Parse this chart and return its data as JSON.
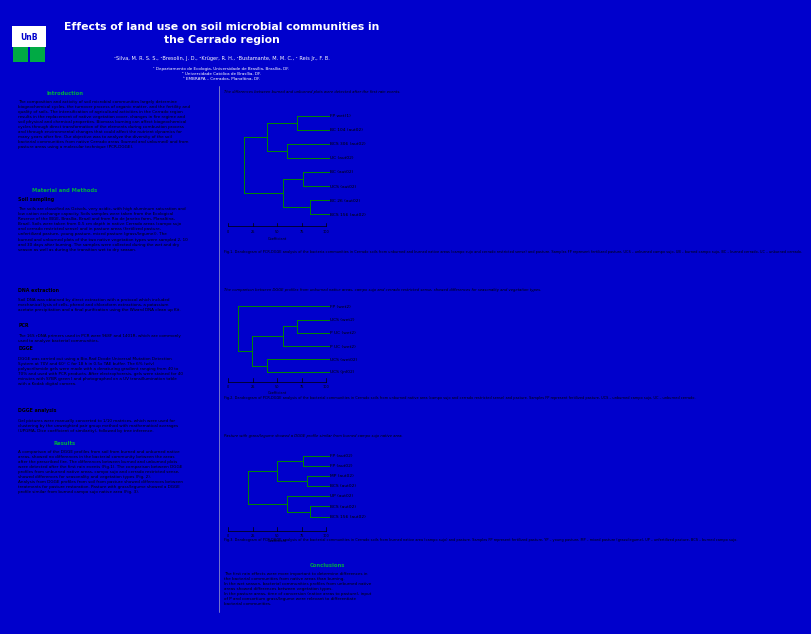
{
  "title": "Effects of land use on soil microbial communities in\nthe Cerrado region",
  "authors": "¹Silva, M. R. S. S., ¹Bresolin, J. D., ²Krüger, R. H., ¹Bustamante, M. M. C., ¹ Reis Jr., F. B.",
  "affiliations": "¹ Departamento de Ecologia, Universidade de Brasília, Brasília, DF.\n² Universidade Católica de Brasília, DF.\n³ EMBRAPA – Cerrados, Planaltina, DF.",
  "section_color": "#00aa44",
  "header_bg": "#0000cc",
  "header_text": "#ffffff",
  "body_bg": "#ffffff",
  "border_color": "#0000cc",
  "intro_title": "Introduction",
  "mm_title": "Material and Methods",
  "soil_subtitle": "Soil sampling",
  "dna_subtitle": "DNA extraction",
  "pcr_subtitle": "PCR",
  "dgge_subtitle": "DGGE",
  "dgge_anal_subtitle": "DGGE analysis",
  "results_title": "Results",
  "conclusions_title": "Conclusions",
  "fig1_note": "The differences between burned and unburned plots were detected after the first rain events.",
  "fig1_caption": "Fig.1. Dendrogram of PCR-DGGE analysis of the bacteria communities in Cerrado soils from unburned and burned native areas (campo sujo and cerrado restricted sense) and pasture. Samples FP represent fertilized pasture, UCS – unburned campo sujo, UB – burned campo sujo, BC – burned cerrado, UC – unburned cerrado.",
  "fig2_note": "The comparison between DGGE profiles from unburned native areas, campo sujo and cerrado restricted sense, showed differences for seasonality and vegetation types.",
  "fig2_caption": "Fig.2. Dendrogram of PCR-DGGE analysis of the bacterial communities in Cerrado soils from unburned native area (campo sujo and cerrado restricted sense) and pasture. Samples FP represent fertilized pasture, UCS – unburned campo sujo, UC – unburned cerrado.",
  "fig3_note": "Pasture with grass/legume showed a DGGE profile similar from burned campo sujo native area.",
  "fig3_caption": "Fig.3. Dendrogram of PCR-DGGE analysis of the bacterial communities in Cerrado soils from burned native area (campo sujo) and pasture. Samples FP represent fertilized pasture, YP – young pasture, MP – mixed pasture (grass/legume), UP – unfertilized pasture, BCS – burned campo sujo.",
  "tree_color": "#008800",
  "intro_body": "The composition and activity of soil microbial communities largely determine\nbiogeochemical cycles, the turnover process of organic matter, and the fertility and\nquality of soils. The intensification of agricultural activities in the Cerrado region\nresults in the replacement of native vegetation cover, changes in fire regime and\nsoil physical and chemical properties. Biomass burning can affect biogeochemical\ncycles through direct transformation of the elements during combustion process\nand through environmental changes that could affect the nutrient dynamics for\nmany years after fire. Our objective was to analyze the diversity of the soil\nbacterial communities from native Cerrado areas (burned and unburned) and from\npasture areas using a molecular technique (PCR-DGGE).",
  "soil_body": "The soils are classified as Oxisols, very acidic, with high aluminum saturation and\nlow cation exchange capacity. Soils samples were taken from the Ecological\nReserve of the IBGE, Brasília, Brazil and from Rio de Janeiro farm, Planaltina,\nBrazil. Soils were taken from 0-5 cm depth in native Cerrado areas (campo sujo\nand cerrado restricted sense) and in pasture areas (fertilized pasture,\nunfertilized pasture, young pasture, mixed pasture (grass/legume)). The\nburned and unburned plots of the two native vegetation types were sampled 2, 10\nand 30 days after burning. The samples were collected during the wet and dry\nseason as well as during the transition wet to dry season.",
  "dna_body": "Soil DNA was obtained by direct extraction with a protocol which included\nmechanical lysis of cells, phenol and chloroform extractions, a potassium\nacetate precipitation and a final purification using the Wizard DNA clean up Kit.",
  "pcr_body": "The 16S rDNA primers used in PCR were 968F and 1401R, which are commonly\nused to analyze bacterial communities.",
  "dgge_body": "DGGE was carried out using a Bio-Rad Dcode Universal Mutation Detection\nSystem at 70V and 60° C for 18 h in 0.5x TAE buffer. The 6% (w/v)\npolyacrilamide gels were made with a denaturing gradient ranging from 40 to\n70% and used with PCR products. After electrophoresis, gels were stained for 40\nminutes with SYBR green I and photographed on a UV transillumination table\nwith a Kodak digital camera.",
  "dgge_anal_body": "Gel pictures were manually converted to 1/10 matrices, which were used for\nclustering by the unweighted pair group method with mathematical averages\n(UPGMA, Dice coefficient of similarity), followed by tree inference.",
  "results_body": "A comparison of the DGGE profiles from soil from burned and unburned native\nareas, showed no differences in the bacterial community between the areas\nafter the prescribed fire. The differences between burned and unburned plots\nwere detected after the first rain events (Fig.1). The comparison between DGGE\nprofiles from unburned native areas, campo sujo and cerrado restricted sense,\nshowed differences for seasonality and vegetation types (Fig. 2).\nAnalysis from DGGE profiles from soil from pasture showed differences between\ntreatments for pasture restoration. Pasture with grass/legume showed a DGGE\nprofile similar from burned campo sujo native area (Fig. 3).",
  "conclusions_body": "The first rain effects were more important to determine differences in\nthe bacterial communities from native areas than burning.\nIn the wet season, bacterial communities profiles from unburned native\nareas showed differences between vegetation types.\nIn the pasture areas, time of conversion (native areas to pasture), input\nof P and consortium grass/legume were relevant to differentiate\nbacterial communities.",
  "fig1_labels": [
    "FP wet(1)",
    "BC 104 (aut02)",
    "BCS 306 (aut02)",
    "UC (aut02)",
    "BC (aut02)",
    "UCS (aut02)",
    "BC 26 (aut02)",
    "BCS 156 (aut02)"
  ],
  "fig2_labels": [
    "FP (wet2)",
    "UCS (wet2)",
    "P UC (wet2)",
    "P UC (wet2)",
    "UCS (wet02)",
    "UCS (jnl02)"
  ],
  "fig3_labels": [
    "FP (aut02)",
    "FP (aut02)",
    "MP (aut02)",
    "BCS (aut02)",
    "UP (aut02)",
    "BCS (aut02)",
    "BCS 156 (aut02)"
  ]
}
